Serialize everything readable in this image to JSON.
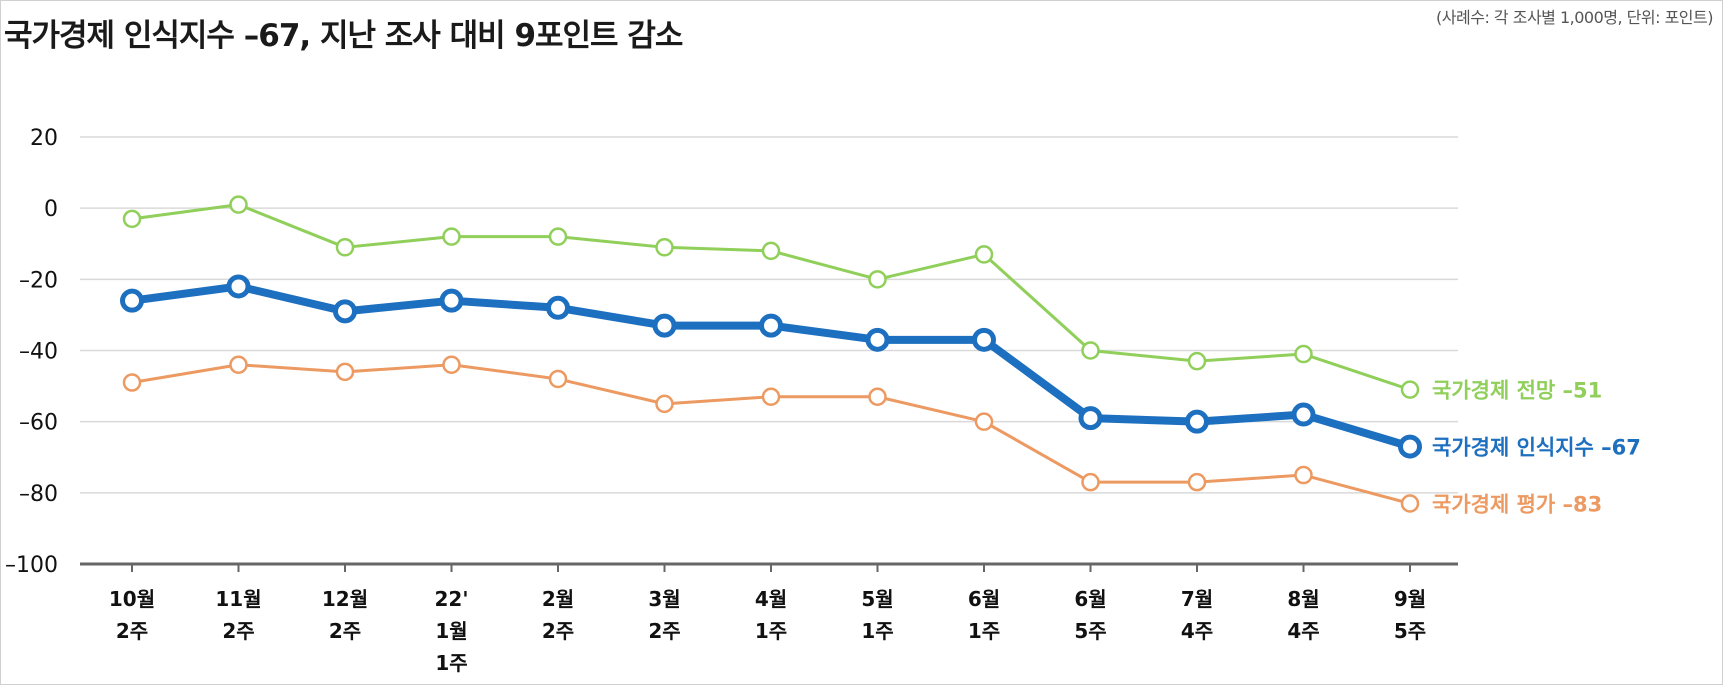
{
  "title": "국가경제 인식지수 –67, 지난 조사 대비 9포인트 감소",
  "note": "(사례수: 각 조사별 1,000명, 단위: 포인트)",
  "chart_data": {
    "type": "line",
    "categories": [
      [
        "10월",
        "2주"
      ],
      [
        "11월",
        "2주"
      ],
      [
        "12월",
        "2주"
      ],
      [
        "22'",
        "1월",
        "1주"
      ],
      [
        "2월",
        "2주"
      ],
      [
        "3월",
        "2주"
      ],
      [
        "4월",
        "1주"
      ],
      [
        "5월",
        "1주"
      ],
      [
        "6월",
        "1주"
      ],
      [
        "6월",
        "5주"
      ],
      [
        "7월",
        "4주"
      ],
      [
        "8월",
        "4주"
      ],
      [
        "9월",
        "5주"
      ]
    ],
    "ylim": [
      -100,
      20
    ],
    "yticks": [
      20,
      0,
      -20,
      -40,
      -60,
      -80,
      -100
    ],
    "ytick_labels": [
      "20",
      "0",
      "–20",
      "–40",
      "–60",
      "–80",
      "–100"
    ],
    "grid": true,
    "series": [
      {
        "name": "국가경제 전망",
        "label": "국가경제 전망 –51",
        "color": "#8fcf5a",
        "width": 3,
        "values": [
          -3,
          1,
          -11,
          -8,
          -8,
          -11,
          -12,
          -20,
          -13,
          -40,
          -43,
          -41,
          -51
        ]
      },
      {
        "name": "국가경제 인식지수",
        "label": "국가경제 인식지수 –67",
        "color": "#1d6fbf",
        "width": 8,
        "values": [
          -26,
          -22,
          -29,
          -26,
          -28,
          -33,
          -33,
          -37,
          -37,
          -59,
          -60,
          -58,
          -67
        ]
      },
      {
        "name": "국가경제 평가",
        "label": "국가경제 평가 –83",
        "color": "#ec9a62",
        "width": 3,
        "values": [
          -49,
          -44,
          -46,
          -44,
          -48,
          -55,
          -53,
          -53,
          -60,
          -77,
          -77,
          -75,
          -83
        ]
      }
    ]
  }
}
